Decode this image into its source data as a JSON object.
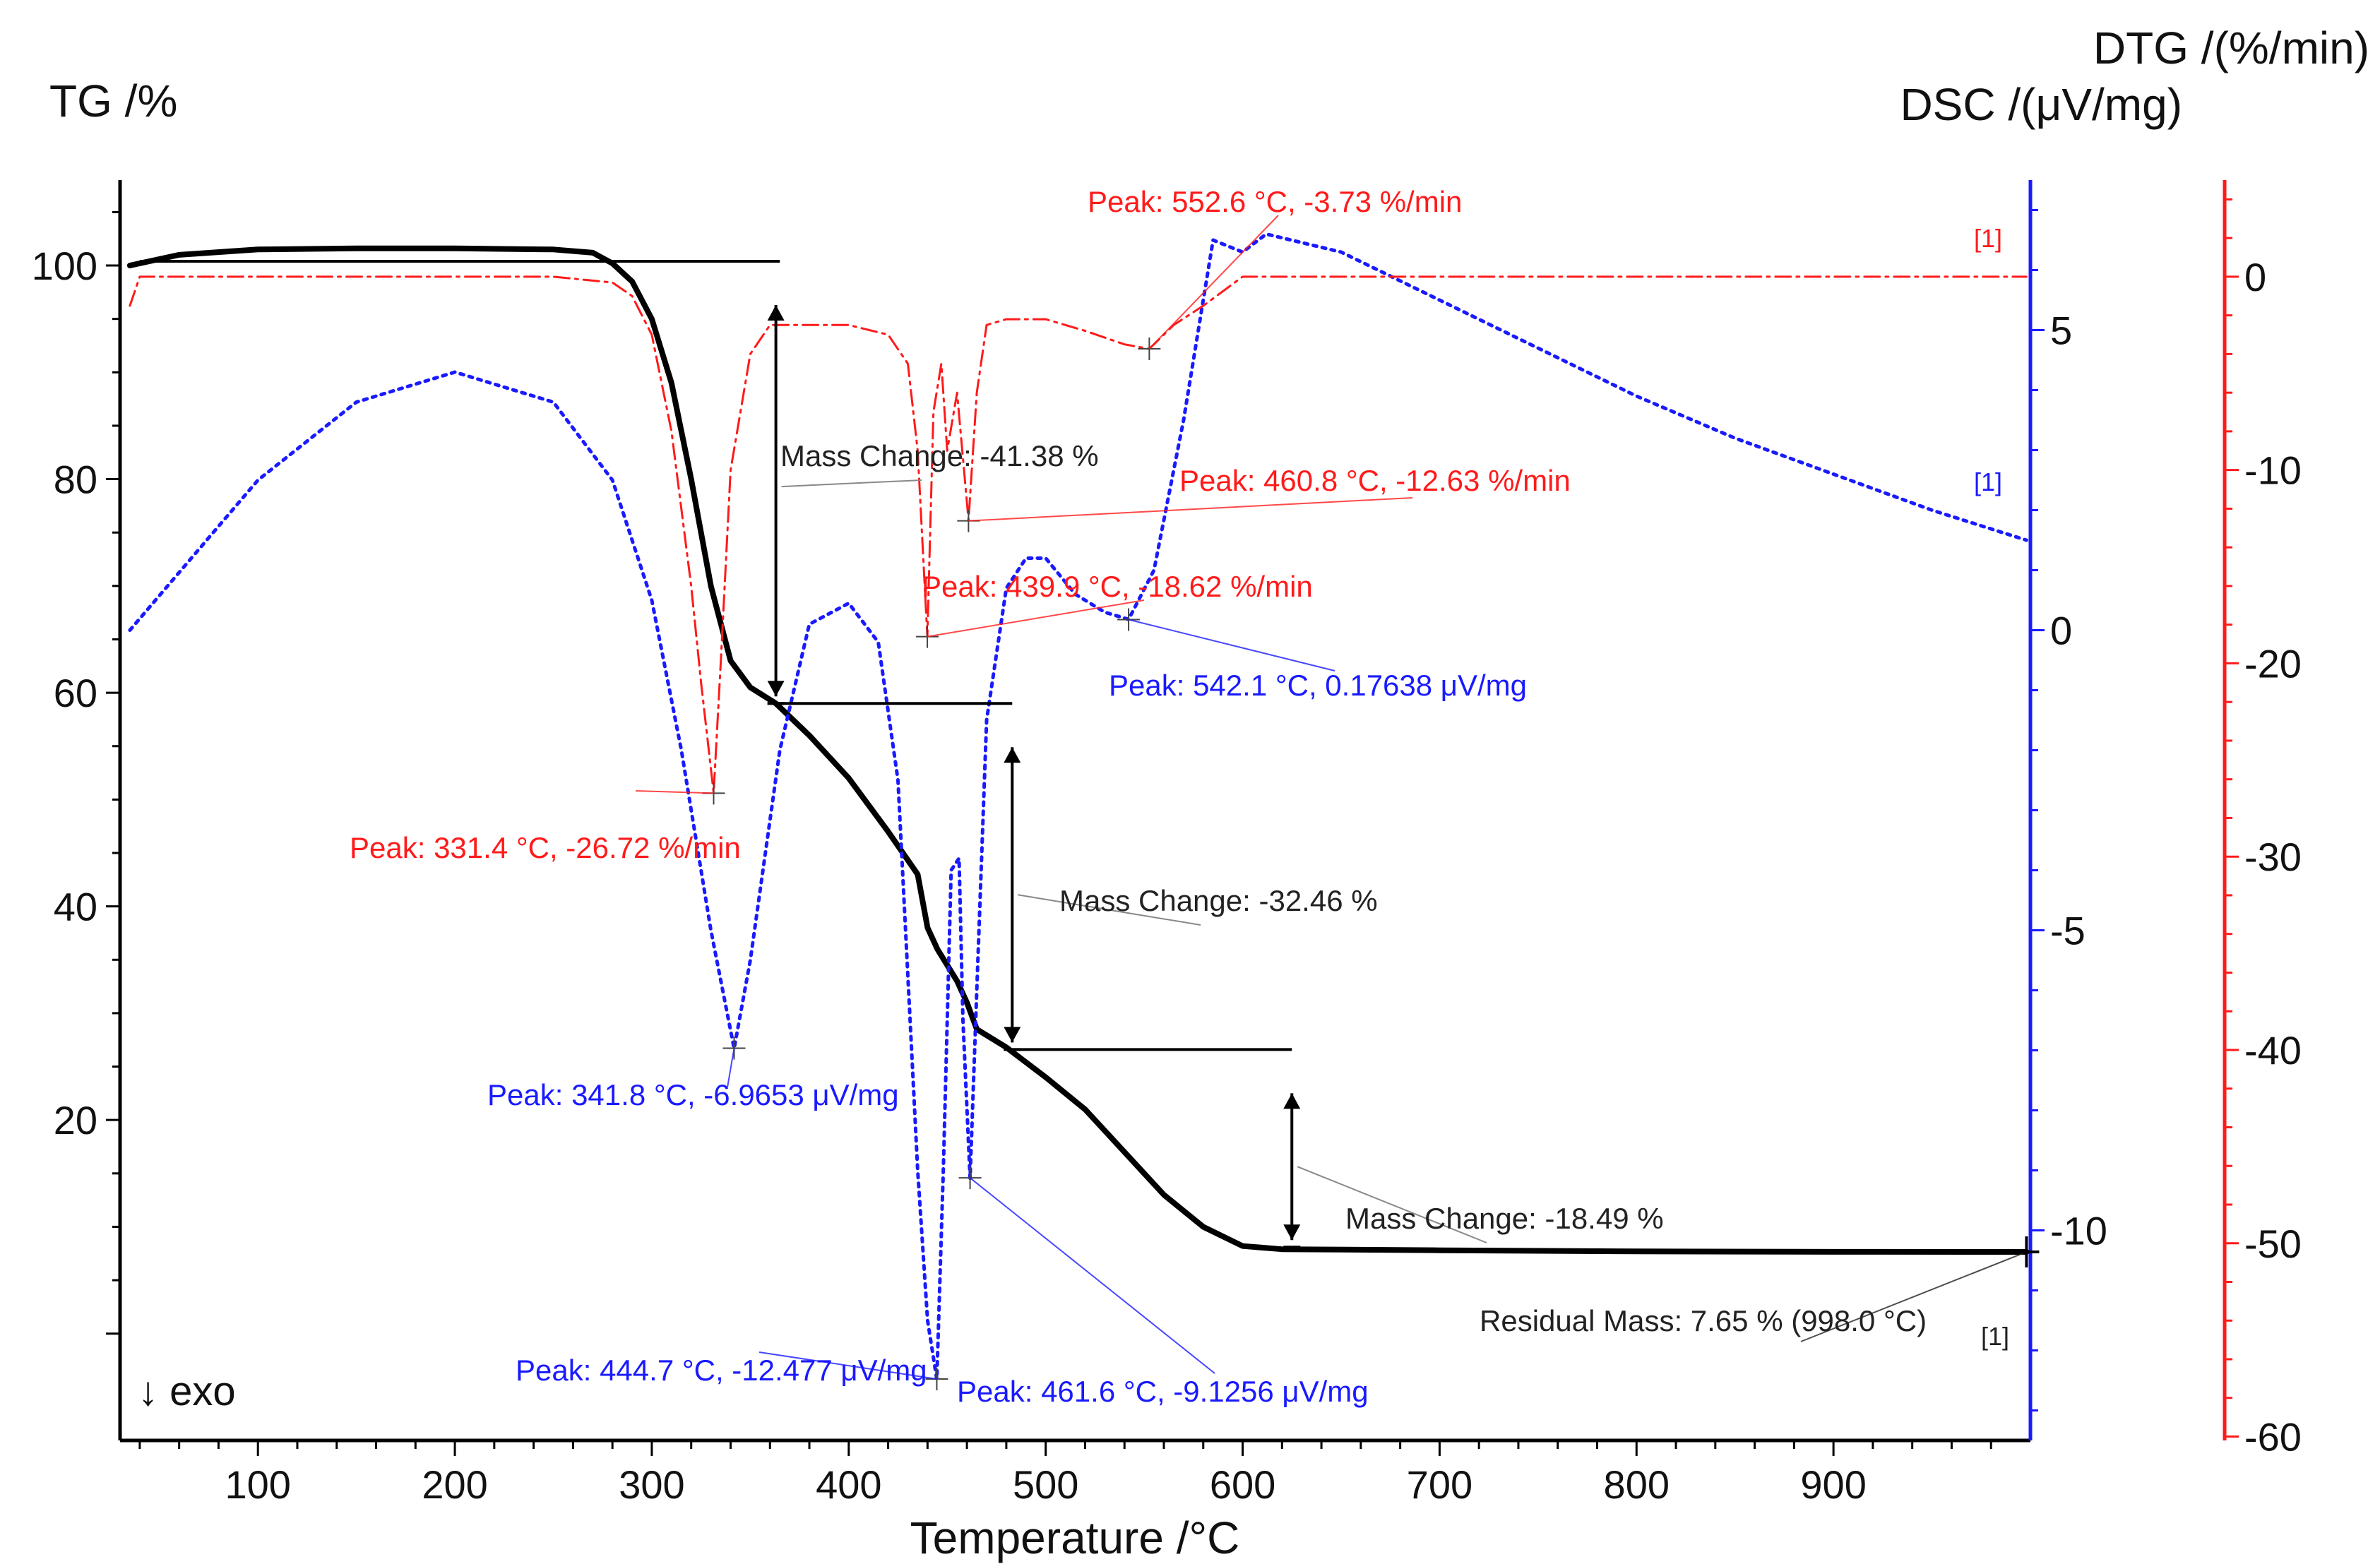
{
  "chart_data": {
    "type": "line",
    "title": "",
    "xlabel": "Temperature /°C",
    "xlim": [
      30,
      1000
    ],
    "x_ticks": [
      "100",
      "200",
      "300",
      "400",
      "500",
      "600",
      "700",
      "800",
      "900"
    ],
    "y_axes": {
      "tg": {
        "label": "TG /%",
        "ylim": [
          -10,
          108
        ],
        "ticks": [
          "20",
          "40",
          "60",
          "80",
          "100"
        ],
        "color": "#000000"
      },
      "dsc": {
        "label": "DSC /(μV/mg)",
        "ylim": [
          -13.5,
          7.5
        ],
        "ticks": [
          "5",
          "0",
          "-5",
          "-10"
        ],
        "color": "#1a1aff"
      },
      "dtg": {
        "label": "DTG /(%/min)",
        "ylim": [
          -60.2,
          5
        ],
        "ticks": [
          "0",
          "-10",
          "-20",
          "-30",
          "-40",
          "-50",
          "-60"
        ],
        "color": "#ff1a1a"
      }
    },
    "series": [
      {
        "name": "TG",
        "axis": "tg",
        "color": "#000000",
        "style": "solid",
        "x": [
          35,
          60,
          100,
          150,
          200,
          250,
          270,
          280,
          290,
          300,
          310,
          320,
          330,
          340,
          350,
          363,
          380,
          400,
          420,
          435,
          440,
          445,
          455,
          460,
          465,
          480,
          500,
          520,
          540,
          560,
          580,
          600,
          620,
          700,
          800,
          900,
          998
        ],
        "y": [
          100,
          101,
          101.5,
          101.6,
          101.6,
          101.5,
          101.2,
          100.2,
          98.5,
          95,
          89,
          80,
          70,
          63,
          60.5,
          59,
          56,
          52,
          47,
          43,
          38,
          36,
          33,
          31,
          28.5,
          26.8,
          24,
          21,
          17,
          13,
          10,
          8.2,
          7.9,
          7.8,
          7.7,
          7.66,
          7.65
        ]
      },
      {
        "name": "DSC",
        "axis": "dsc",
        "color": "#1a1aff",
        "style": "dotted",
        "x": [
          35,
          100,
          150,
          200,
          250,
          280,
          300,
          315,
          330,
          341.8,
          350,
          365,
          380,
          400,
          415,
          425,
          435,
          440,
          444.7,
          448,
          452,
          456,
          458,
          461.6,
          465,
          470,
          480,
          490,
          500,
          515,
          530,
          542.1,
          555,
          570,
          585,
          600,
          612,
          650,
          700,
          750,
          800,
          850,
          900,
          950,
          998
        ],
        "y": [
          0,
          2.5,
          3.8,
          4.3,
          3.8,
          2.5,
          0.5,
          -2,
          -5,
          -6.97,
          -5.5,
          -2,
          0.1,
          0.45,
          -0.2,
          -2.5,
          -9,
          -11.5,
          -12.48,
          -9,
          -4,
          -3.8,
          -6.5,
          -9.13,
          -6,
          -1.5,
          0.7,
          1.2,
          1.2,
          0.6,
          0.3,
          0.18,
          1,
          3.5,
          6.5,
          6.3,
          6.6,
          6.3,
          5.5,
          4.7,
          3.9,
          3.2,
          2.6,
          2.0,
          1.5
        ]
      },
      {
        "name": "DTG",
        "axis": "dtg",
        "color": "#ff1a1a",
        "style": "dash-dot",
        "x": [
          35,
          40,
          60,
          100,
          150,
          200,
          250,
          280,
          290,
          300,
          310,
          320,
          325,
          331.4,
          335,
          340,
          350,
          360,
          380,
          400,
          420,
          430,
          435,
          439.9,
          443,
          447,
          450,
          455,
          460.8,
          465,
          470,
          480,
          500,
          520,
          540,
          552.6,
          565,
          580,
          600,
          610,
          650,
          700,
          800,
          900,
          998
        ],
        "y": [
          -1.5,
          0,
          0,
          0,
          0,
          0,
          0,
          -0.3,
          -1,
          -3,
          -8,
          -16,
          -21,
          -26.7,
          -20,
          -10,
          -4,
          -2.5,
          -2.5,
          -2.5,
          -3,
          -4.5,
          -9,
          -18.6,
          -7,
          -4.5,
          -9,
          -6,
          -12.6,
          -6,
          -2.5,
          -2.2,
          -2.2,
          -2.8,
          -3.5,
          -3.73,
          -2.5,
          -1.5,
          0,
          0,
          0,
          0,
          0,
          0,
          0
        ]
      }
    ],
    "mass_changes": [
      {
        "label": "Mass Change: -41.38 %",
        "x": 363,
        "from": 100.4,
        "to": 59.0
      },
      {
        "label": "Mass Change: -32.46 %",
        "x": 483,
        "from": 59.0,
        "to": 26.6
      },
      {
        "label": "Mass Change: -18.49 %",
        "x": 625,
        "from": 26.6,
        "to": 8.1
      }
    ],
    "baselines": [
      {
        "x1": 40,
        "x2": 365,
        "y": 100.4
      },
      {
        "x1": 363,
        "x2": 483,
        "y": 59.0
      },
      {
        "x1": 483,
        "x2": 625,
        "y": 26.6
      }
    ],
    "annotations": [
      {
        "text": "Peak: 552.6 °C, -3.73 %/min",
        "color": "#ff1a1a",
        "axis": "dtg",
        "x": 552.6,
        "y": -3.73
      },
      {
        "text": "Peak: 460.8 °C, -12.63 %/min",
        "color": "#ff1a1a",
        "axis": "dtg",
        "x": 460.8,
        "y": -12.63
      },
      {
        "text": "Peak: 439.9 °C, -18.62 %/min",
        "color": "#ff1a1a",
        "axis": "dtg",
        "x": 439.9,
        "y": -18.62
      },
      {
        "text": "Peak: 331.4 °C, -26.72 %/min",
        "color": "#ff1a1a",
        "axis": "dtg",
        "x": 331.4,
        "y": -26.72
      },
      {
        "text": "Peak: 542.1 °C, 0.17638 μV/mg",
        "color": "#1a1aff",
        "axis": "dsc",
        "x": 542.1,
        "y": 0.17638
      },
      {
        "text": "Peak: 341.8 °C, -6.9653 μV/mg",
        "color": "#1a1aff",
        "axis": "dsc",
        "x": 341.8,
        "y": -6.9653
      },
      {
        "text": "Peak: 444.7 °C, -12.477 μV/mg",
        "color": "#1a1aff",
        "axis": "dsc",
        "x": 444.7,
        "y": -12.477
      },
      {
        "text": "Peak: 461.6 °C, -9.1256 μV/mg",
        "color": "#1a1aff",
        "axis": "dsc",
        "x": 461.6,
        "y": -9.1256
      },
      {
        "text": "Residual Mass: 7.65 % (998.0 °C)",
        "color": "#222222",
        "axis": "tg",
        "x": 998,
        "y": 7.65
      }
    ],
    "series_tags": [
      {
        "text": "[1]",
        "color": "#ff1a1a",
        "series": "DTG"
      },
      {
        "text": "[1]",
        "color": "#1a1aff",
        "series": "DSC"
      },
      {
        "text": "[1]",
        "color": "#222222",
        "series": "TG"
      }
    ],
    "exo_label": "↓ exo"
  }
}
